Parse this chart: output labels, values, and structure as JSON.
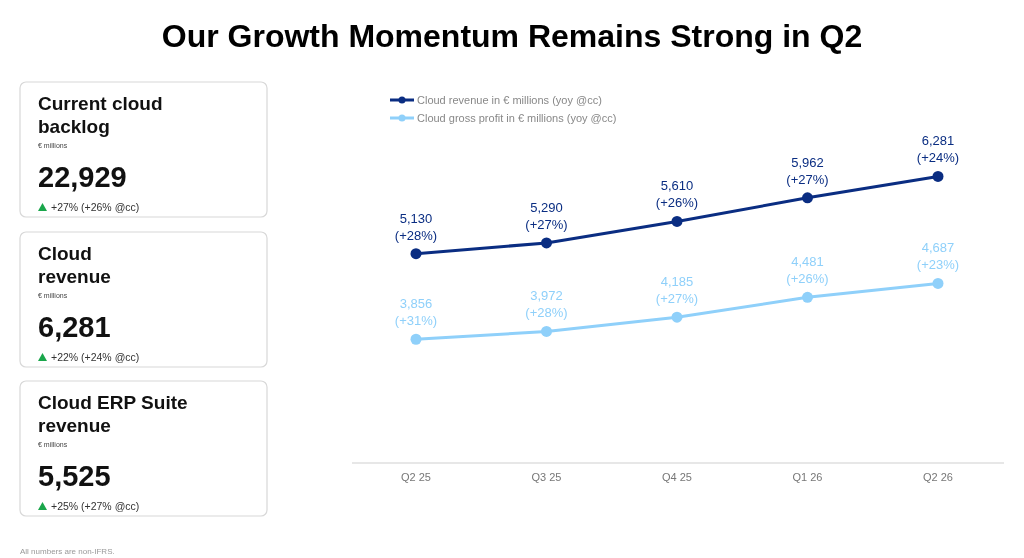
{
  "chart_data": [
    {
      "type": "other",
      "title": "Current cloud\nbacklog",
      "subtitle": "€ millions",
      "annotations": [
        "22,929",
        "+27% (+26% @cc)"
      ]
    },
    {
      "type": "other",
      "title": "Cloud\nrevenue",
      "subtitle": "€ millions",
      "annotations": [
        "6,281",
        "+22% (+24% @cc)"
      ]
    },
    {
      "type": "other",
      "title": "Cloud ERP Suite\nrevenue",
      "subtitle": "€ millions",
      "annotations": [
        "5,525",
        "+25% (+27% @cc)"
      ]
    },
    {
      "type": "line",
      "title": "Our Growth Momentum Remains Strong in Q2",
      "categories": [
        "Q2 25",
        "Q3 25",
        "Q4 25",
        "Q1 26",
        "Q2 26"
      ],
      "marker": "circle",
      "legend": "top left",
      "annotations": [
        "All numbers are non-IFRS."
      ],
      "series": [
        {
          "name": "Cloud revenue in € millions (yoy @cc)",
          "color": "#0a2d82",
          "values": [
            5130,
            5290,
            5610,
            5962,
            6281
          ],
          "value_labels": [
            "5,130\n(+28%)",
            "5,290\n(+27%)",
            "5,610\n(+26%)",
            "5,962\n(+27%)",
            "6,281\n(+24%)"
          ]
        },
        {
          "name": "Cloud gross profit in € millions (yoy @cc)",
          "color": "#8fd0fa",
          "values": [
            3856,
            3972,
            4185,
            4481,
            4687
          ],
          "value_labels": [
            "3,856\n(+31%)",
            "3,972\n(+28%)",
            "4,185\n(+27%)",
            "4,481\n(+26%)",
            "4,687\n(+23%)"
          ]
        }
      ]
    }
  ]
}
